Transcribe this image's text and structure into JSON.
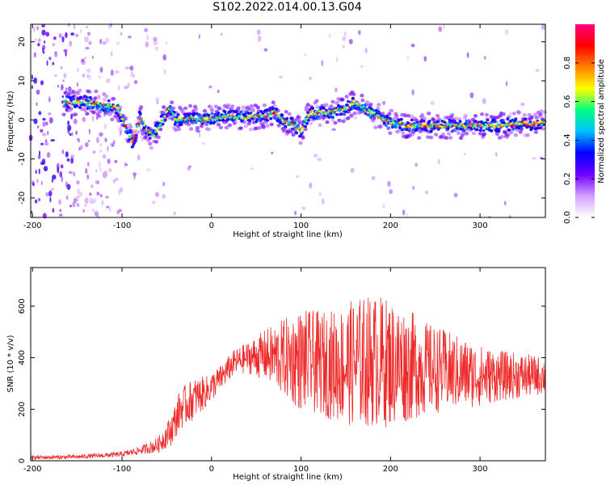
{
  "title": "S102.2022.014.00.13.G04",
  "chart_data": [
    {
      "type": "heatmap",
      "xlabel": "Height of straight line (km)",
      "ylabel": "Frequency (Hz)",
      "xlim": [
        -202,
        373
      ],
      "ylim": [
        -25,
        24.5
      ],
      "xticks": [
        -200,
        -100,
        0,
        100,
        200,
        300
      ],
      "yticks": [
        -20,
        -10,
        0,
        10,
        20
      ],
      "colorbar": {
        "label": "Normalized spectral amplitude",
        "range": [
          0,
          1
        ],
        "ticks": [
          "0.0",
          "0.2",
          "0.4",
          "0.6",
          "0.8"
        ],
        "colors": [
          "#ffffff",
          "#d4a0ff",
          "#7000ff",
          "#0000ff",
          "#00c0ff",
          "#00ff80",
          "#ffff00",
          "#ff8000",
          "#ff0000",
          "#ff0080"
        ]
      },
      "ridge": {
        "x": [
          -165,
          -140,
          -125,
          -105,
          -95,
          -88,
          -80,
          -72,
          -65,
          -55,
          -48,
          -40,
          -30,
          -20,
          -10,
          0,
          20,
          40,
          60,
          70,
          80,
          90,
          100,
          110,
          130,
          150,
          160,
          170,
          180,
          200,
          220,
          250,
          280,
          300,
          320,
          340,
          360,
          373
        ],
        "freq": [
          4.5,
          4.5,
          4,
          3,
          -2,
          -6,
          1,
          -3,
          -4,
          0,
          3,
          0,
          0.5,
          0.5,
          0,
          0.3,
          1,
          0.5,
          1,
          2,
          0,
          -1,
          -3,
          2,
          1.5,
          3,
          4.5,
          3,
          1.5,
          -0.5,
          -1.5,
          -1.5,
          -1.5,
          -1.5,
          -1.5,
          -1,
          -1,
          -0.8
        ]
      }
    },
    {
      "type": "line",
      "xlabel": "Height of straight line (km)",
      "ylabel": "SNR (10 * v/v)",
      "xlim": [
        -202,
        373
      ],
      "ylim": [
        0,
        750
      ],
      "xticks": [
        -200,
        -100,
        0,
        100,
        200,
        300
      ],
      "yticks": [
        0,
        200,
        400,
        600
      ],
      "color": "#ee2a2a",
      "envelope": {
        "x": [
          -202,
          -150,
          -100,
          -80,
          -60,
          -45,
          -35,
          -20,
          -5,
          10,
          25,
          40,
          60,
          80,
          100,
          120,
          140,
          160,
          180,
          200,
          220,
          240,
          260,
          280,
          300,
          320,
          340,
          360,
          373
        ],
        "mean": [
          12,
          15,
          25,
          40,
          60,
          120,
          200,
          240,
          270,
          320,
          380,
          400,
          410,
          400,
          390,
          380,
          370,
          380,
          390,
          380,
          370,
          360,
          350,
          340,
          330,
          330,
          330,
          330,
          330
        ],
        "amp": [
          8,
          8,
          10,
          15,
          30,
          60,
          80,
          80,
          60,
          50,
          50,
          60,
          100,
          150,
          200,
          200,
          220,
          250,
          260,
          250,
          220,
          180,
          160,
          140,
          120,
          100,
          90,
          80,
          70
        ]
      }
    }
  ]
}
